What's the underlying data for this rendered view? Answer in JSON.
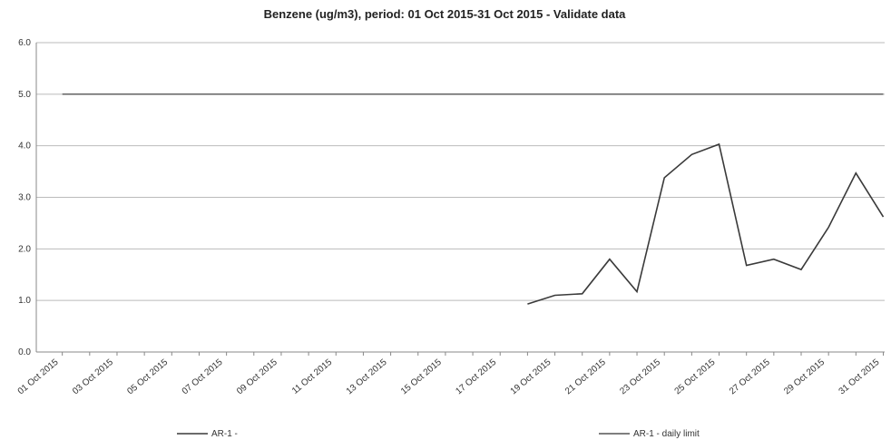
{
  "chart_data": {
    "type": "line",
    "title": "Benzene (ug/m3), period: 01 Oct 2015-31 Oct 2015 - Validate data",
    "categories": [
      "01 Oct 2015",
      null,
      "03 Oct 2015",
      null,
      "05 Oct 2015",
      null,
      "07 Oct 2015",
      null,
      "09 Oct 2015",
      null,
      "11 Oct 2015",
      null,
      "13 Oct 2015",
      null,
      "15 Oct 2015",
      null,
      "17 Oct 2015",
      null,
      "19 Oct 2015",
      null,
      "21 Oct 2015",
      null,
      "23 Oct 2015",
      null,
      "25 Oct 2015",
      null,
      "27 Oct 2015",
      null,
      "29 Oct 2015",
      null,
      "31 Oct 2015"
    ],
    "series": [
      {
        "name": "AR-1 -",
        "color": "#3a3a3a",
        "values": [
          null,
          null,
          null,
          null,
          null,
          null,
          null,
          null,
          null,
          null,
          null,
          null,
          null,
          null,
          null,
          null,
          null,
          0.93,
          1.1,
          1.13,
          1.8,
          1.17,
          3.38,
          3.83,
          4.03,
          1.68,
          1.8,
          1.6,
          2.42,
          3.47,
          2.62
        ]
      },
      {
        "name": "AR-1 - daily limit",
        "color": "#555555",
        "values": [
          5,
          5,
          5,
          5,
          5,
          5,
          5,
          5,
          5,
          5,
          5,
          5,
          5,
          5,
          5,
          5,
          5,
          5,
          5,
          5,
          5,
          5,
          5,
          5,
          5,
          5,
          5,
          5,
          5,
          5,
          5
        ]
      }
    ],
    "ylim": [
      0,
      6
    ],
    "yticks": [
      {
        "value": 0,
        "label": "0.0"
      },
      {
        "value": 1,
        "label": "1.0"
      },
      {
        "value": 2,
        "label": "2.0"
      },
      {
        "value": 3,
        "label": "3.0"
      },
      {
        "value": 4,
        "label": "4.0"
      },
      {
        "value": 5,
        "label": "5.0"
      },
      {
        "value": 6,
        "label": "6.0"
      }
    ],
    "grid": true
  }
}
